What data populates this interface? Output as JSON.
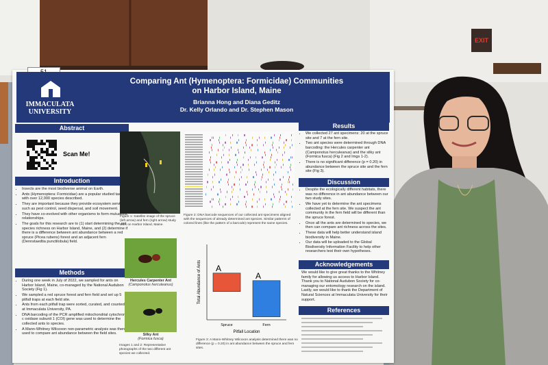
{
  "tag": "51",
  "exit_sign": "EXIT",
  "poster": {
    "logo": [
      "IMMACULATA",
      "UNIVERSITY"
    ],
    "title": [
      "Comparing Ant (Hymenoptera: Formicidae) Communities",
      "on Harbor Island, Maine"
    ],
    "authors": [
      "Brianna Hong and Diana Geditz",
      "Dr. Kelly Orlando and Dr. Stephen Mason"
    ],
    "abstract": {
      "heading": "Abstract",
      "qr_label": "Scan Me!"
    },
    "introduction": {
      "heading": "Introduction",
      "bullets": [
        "Insects are the most biodiverse animal on Earth.",
        "Ants (Hymenoptera: Formicidae) are a popular studied taxa with over 12,000 species described.",
        "They are important because they provide ecosystem services such as pest control, seed dispersal, and soil movement.",
        "They have co-evolved with other organisms to form mutualistic relationships.",
        "The goals for this research are to (1) start determining the ant species richness on Harbor Island, Maine, and (2) determine if there is a difference between ant abundance between a red spruce (Picea rubens) forest and an adjacent fern (Dennstaedtia punctilobula) field."
      ]
    },
    "methods": {
      "heading": "Methods",
      "bullets": [
        "During one week in July of 2022, we sampled for ants on Harbor Island, Maine, co-managed by the National Audubon Society (Fig 1).",
        "We sampled a red spruce forest and fern field and set up 5 pitfall traps at each field site.",
        "Ants from each pitfall trap were sorted, curated, and counted at Immaculata University, PA.",
        "DNA barcoding of the PCR amplified mitochondrial cytochrome c oxidase subunit 1 (COI) gene was used to determine the collected ants to species.",
        "A Mann-Whitney Wilcoxon non-parametric analysis was then used to compare ant abundance between the field sites."
      ]
    },
    "figure1_caption": "Figure 1: Satellite image of the spruce (left arrow) and fern (right arrow) study sites on Harbor Island, Maine.",
    "figure2_caption": "Figure 2: DNA barcode sequences of our collected ant specimens aligned with the sequences of already determined ant species. Similar patterns of colored lines (like the pattern of a barcode) represent the same species.",
    "image1": {
      "name": "Hercules Carpenter Ant",
      "species": "(Camponotus herculeanus)"
    },
    "image2": {
      "name": "Silky Ant",
      "species": "(Formica fusca)"
    },
    "images_caption": "Images 1 and 2: Representative photographs of the two different ant species we collected.",
    "figure3_caption": "Figure 3: A Mann-Whitney Wilcoxon analysis determined there was no difference (p = 0.20) in ant abundance between the spruce and fern sites.",
    "results": {
      "heading": "Results",
      "bullets": [
        "We collected 27 ant specimens: 20 at the spruce site and 7 at the fern site.",
        "Two ant species were determined through DNA barcoding: the Hercules carpenter ant (Camponotus herculeanus) and the silky ant (Formica fusca) (Fig 2 and Imgs 1-2).",
        "There is no significant difference (p = 0.20) in abundance between the spruce site and the fern site (Fig 3)."
      ]
    },
    "discussion": {
      "heading": "Discussion",
      "bullets": [
        "Despite the ecologically different habitats, there was no difference in ant abundance between our two study sites.",
        "We have yet to determine the ant specimens collected at the fern site. We suspect the ant community in the fern field will be different than the spruce forest.",
        "Once all the ants are determined to species, we then can compare ant richness across the sites.",
        "These data will help better understand island biodiversity in Maine.",
        "Our data will be uploaded to the Global Biodiversity Information Facility to help other researchers test their own hypotheses."
      ]
    },
    "acknowledgements": {
      "heading": "Acknowledgements",
      "text": "We would like to give great thanks to the Whitney family for allowing us access to Harbor Island. Thank you to National Audubon Society for co-managing our entomology research on the island. Lastly, we would like to thank the Department of Natural Sciences at Immaculata University for their support."
    },
    "references": {
      "heading": "References"
    }
  },
  "chart_data": {
    "type": "box",
    "y_label": "Total Abundance of Ants",
    "x_label": "Pitfall Location",
    "categories": [
      "Spruce",
      "Fern"
    ],
    "boxes": [
      {
        "low": 3.75,
        "high": 6.2,
        "color": "#e8563a",
        "letter": "A"
      },
      {
        "low": 0.4,
        "high": 5.2,
        "color": "#2f7fe0",
        "letter": "A"
      }
    ],
    "ylim": [
      0,
      10
    ]
  }
}
